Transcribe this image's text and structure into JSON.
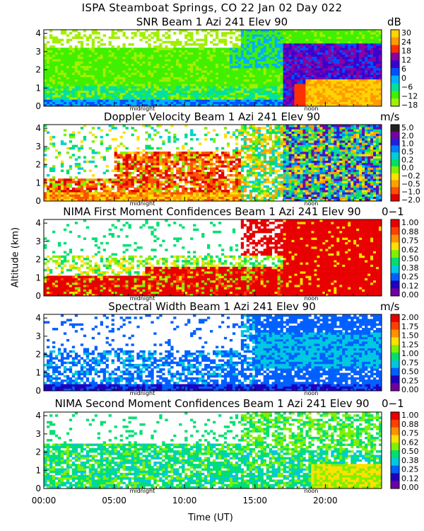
{
  "main_title": "ISPA Steamboat Springs, CO   22 Jan 02 Day 022",
  "y_axis_label": "Altitude (km)",
  "x_axis_label": "Time (UT)",
  "x_ticks": [
    "00:00",
    "05:00",
    "10:00",
    "15:00",
    "20:00"
  ],
  "x_markers": [
    "midnight",
    "noon"
  ],
  "chart_data": [
    {
      "type": "heatmap",
      "title": "SNR Beam 1 Azi 241 Elev 90",
      "units": "dB",
      "xlim": [
        0,
        24
      ],
      "ylim": [
        0,
        4.2
      ],
      "y_ticks": [
        "0",
        "1",
        "2",
        "3",
        "4"
      ],
      "colorbar_labels": [
        "30",
        "24",
        "18",
        "12",
        "6",
        "0",
        "−6",
        "−12",
        "−18"
      ],
      "colorbar_colors": [
        "#ffd200",
        "#ff9a00",
        "#ff3000",
        "#8a00a0",
        "#3a00d0",
        "#0050ff",
        "#00b0ff",
        "#00e0a0",
        "#40f000",
        "#a0f000"
      ]
    },
    {
      "type": "heatmap",
      "title": "Doppler Velocity Beam 1 Azi 241 Elev 90",
      "units": "m/s",
      "xlim": [
        0,
        24
      ],
      "ylim": [
        0,
        4.2
      ],
      "y_ticks": [
        "0",
        "1",
        "2",
        "3",
        "4"
      ],
      "colorbar_labels": [
        "5.0",
        "2.0",
        "1.0",
        "0.5",
        "0.2",
        "0.0",
        "−0.2",
        "−0.5",
        "−1.0",
        "−2.0"
      ],
      "colorbar_colors": [
        "#202020",
        "#7a00a0",
        "#2020e0",
        "#0080ff",
        "#00d0d0",
        "#00e060",
        "#80f000",
        "#ffe000",
        "#ffa000",
        "#ff5000",
        "#e00000"
      ]
    },
    {
      "type": "heatmap",
      "title": "NIMA First Moment Confidences Beam 1 Azi 241 Elev 90",
      "units": "0−1",
      "xlim": [
        0,
        24
      ],
      "ylim": [
        0,
        4.2
      ],
      "y_ticks": [
        "0",
        "1",
        "2",
        "3",
        "4"
      ],
      "colorbar_labels": [
        "1.00",
        "0.88",
        "0.75",
        "0.62",
        "0.50",
        "0.38",
        "0.25",
        "0.12",
        "0.00"
      ],
      "colorbar_colors": [
        "#e80000",
        "#ff4000",
        "#ff9000",
        "#ffe000",
        "#80f000",
        "#00e070",
        "#00c8e0",
        "#0060ff",
        "#2000c0",
        "#7000a0"
      ]
    },
    {
      "type": "heatmap",
      "title": "Spectral Width Beam 1 Azi 241 Elev 90",
      "units": "m/s",
      "xlim": [
        0,
        24
      ],
      "ylim": [
        0,
        4.2
      ],
      "y_ticks": [
        "0",
        "1",
        "2",
        "3",
        "4"
      ],
      "colorbar_labels": [
        "2.00",
        "1.75",
        "1.50",
        "1.25",
        "1.00",
        "0.75",
        "0.50",
        "0.25",
        "0.00"
      ],
      "colorbar_colors": [
        "#e80000",
        "#ff4000",
        "#ff9000",
        "#ffe000",
        "#80f000",
        "#00e070",
        "#00c8e0",
        "#0060ff",
        "#2000c0",
        "#7000a0"
      ]
    },
    {
      "type": "heatmap",
      "title": "NIMA Second Moment Confidences Beam 1 Azi 241 Elev 90",
      "units": "0−1",
      "xlim": [
        0,
        24
      ],
      "ylim": [
        0,
        4.2
      ],
      "y_ticks": [
        "0",
        "1",
        "2",
        "3",
        "4"
      ],
      "colorbar_labels": [
        "1.00",
        "0.88",
        "0.75",
        "0.62",
        "0.50",
        "0.38",
        "0.25",
        "0.12",
        "0.00"
      ],
      "colorbar_colors": [
        "#e80000",
        "#ff4000",
        "#ff9000",
        "#ffe000",
        "#80f000",
        "#00e070",
        "#00c8e0",
        "#0060ff",
        "#2000c0",
        "#7000a0"
      ]
    }
  ]
}
